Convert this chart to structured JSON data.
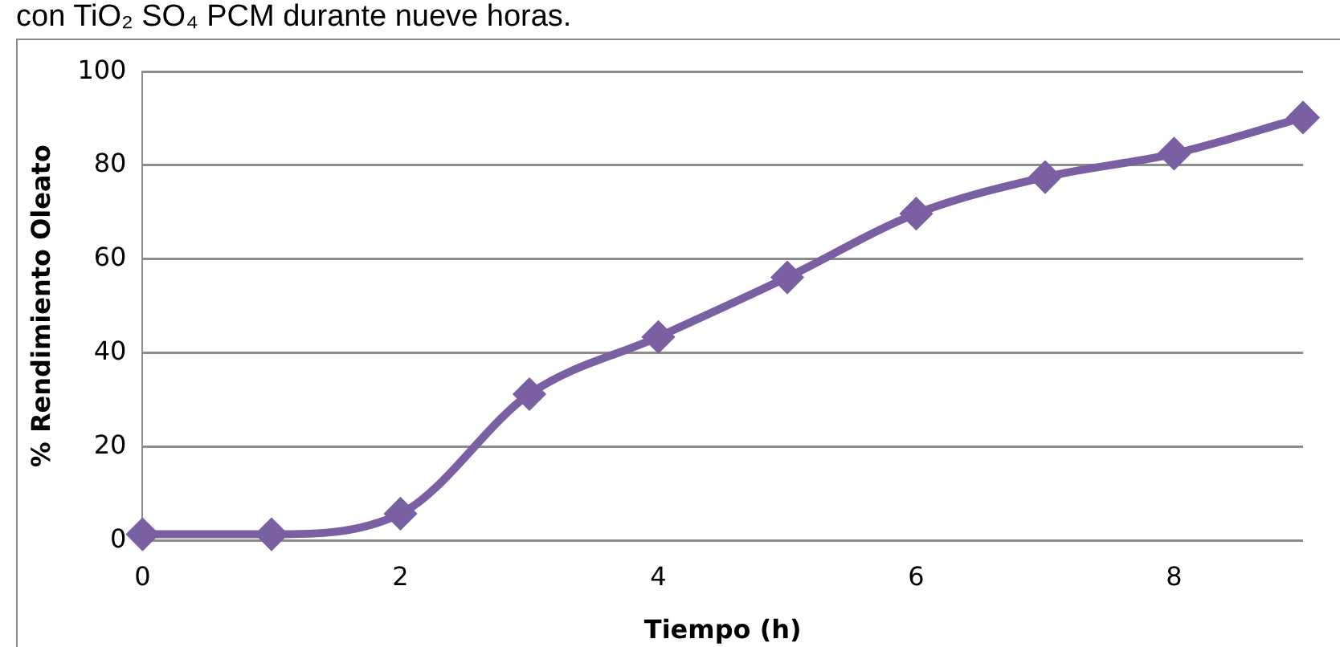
{
  "chart_data": {
    "type": "line",
    "annotations": [
      "con TiO₂ SO₄ PCM durante nueve horas."
    ],
    "xlabel": "Tiempo (h)",
    "ylabel": "% Rendimiento Oleato",
    "x": [
      0,
      1,
      2,
      3,
      4,
      5,
      6,
      7,
      8,
      9
    ],
    "series": [
      {
        "color": "#7b5fa3",
        "values": [
          1.3,
          1.3,
          5.7,
          31.2,
          43.4,
          56.1,
          69.7,
          77.5,
          82.5,
          90.2
        ]
      }
    ],
    "xlim": [
      0,
      9
    ],
    "xticks": [
      0,
      2,
      4,
      6,
      8
    ],
    "ylim": [
      0,
      100
    ],
    "yticks": [
      0,
      20,
      40,
      60,
      80,
      100
    ],
    "grid": "y",
    "legend": false,
    "marker": "diamond",
    "line_style": "solid"
  }
}
